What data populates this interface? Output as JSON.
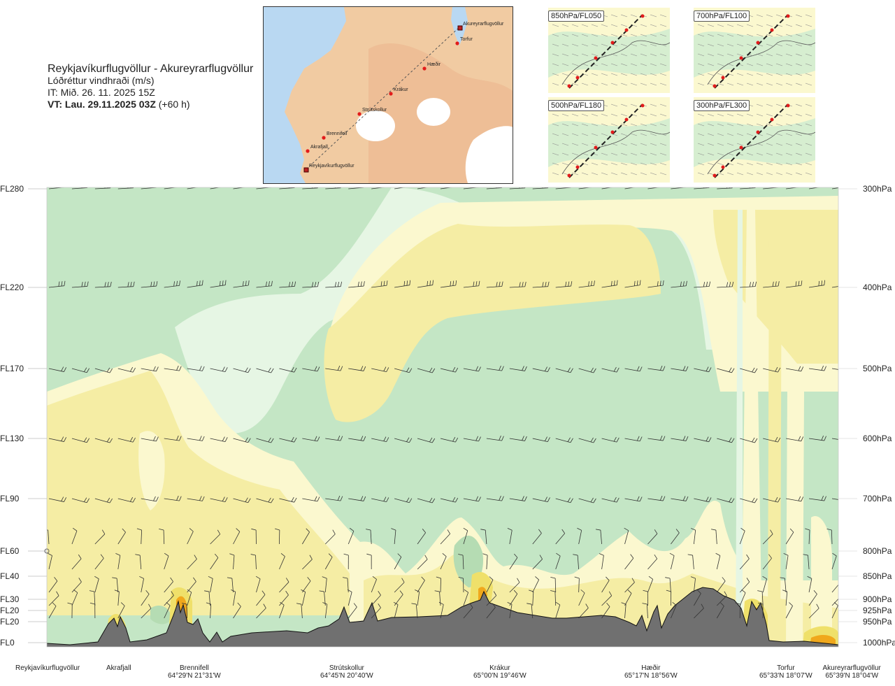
{
  "header": {
    "route": "Reykjavíkurflugvöllur - Akureyrarflugvöllur",
    "parameter": "Lóðréttur vindhraði (m/s)",
    "it": "IT: Mið. 26. 11. 2025 15Z",
    "vt": "VT: Lau. 29.11.2025 03Z",
    "lead": "(+60 h)"
  },
  "map": {
    "waypoints": [
      {
        "name": "Akureyrarflugvöllur",
        "end": true
      },
      {
        "name": "Torfur"
      },
      {
        "name": "Hæðir"
      },
      {
        "name": "Krákur"
      },
      {
        "name": "Strútskollur"
      },
      {
        "name": "Brennifell"
      },
      {
        "name": "Akrafjall"
      },
      {
        "name": "Reykjavíkurflugvöllur",
        "end": true
      }
    ]
  },
  "mini_maps": [
    {
      "label": "850hPa/FL050"
    },
    {
      "label": "700hPa/FL100"
    },
    {
      "label": "500hPa/FL180"
    },
    {
      "label": "300hPa/FL300"
    }
  ],
  "colors": {
    "green_dark": "#b5dcb3",
    "green_mid": "#cdebcf",
    "green_light": "#e6f6e4",
    "white": "#ffffff",
    "yellow_light": "#fbf8cf",
    "yellow": "#f5eda4",
    "yellow_dark": "#efe06a",
    "orange": "#f0a81c",
    "terrain": "#707070",
    "map_land": "#f1cba2",
    "map_water": "#b9d8f2"
  },
  "chart_data": {
    "type": "heatmap",
    "title": "",
    "xlabel": "",
    "ylabel": "",
    "y_axis_left": [
      "FL280",
      "FL220",
      "FL170",
      "FL130",
      "FL90",
      "FL60",
      "FL40",
      "FL30",
      "FL20",
      "FL20",
      "FL0"
    ],
    "y_axis_right": [
      "300hPa",
      "400hPa",
      "500hPa",
      "600hPa",
      "700hPa",
      "800hPa",
      "850hPa",
      "900hPa",
      "925hPa",
      "950hPa",
      "1000hPa"
    ],
    "x_locations": [
      {
        "name": "Reykjavíkurflugvöllur",
        "coord": ""
      },
      {
        "name": "Akrafjall",
        "coord": ""
      },
      {
        "name": "Brennifell",
        "coord": "64°29'N 21°31'W"
      },
      {
        "name": "Strútskollur",
        "coord": "64°45'N 20°40'W"
      },
      {
        "name": "Krákur",
        "coord": "65°00'N 19°46'W"
      },
      {
        "name": "Hæðir",
        "coord": "65°17'N 18°56'W"
      },
      {
        "name": "Torfur",
        "coord": "65°33'N 18°07'W"
      },
      {
        "name": "Akureyrarflugvöllur",
        "coord": "65°39'N 18°04'W"
      }
    ],
    "wind_levels_hpa": [
      300,
      400,
      500,
      600,
      700,
      800,
      850,
      900,
      925,
      950
    ],
    "wind_barb_columns": 35,
    "grid": false,
    "legend": "none"
  }
}
